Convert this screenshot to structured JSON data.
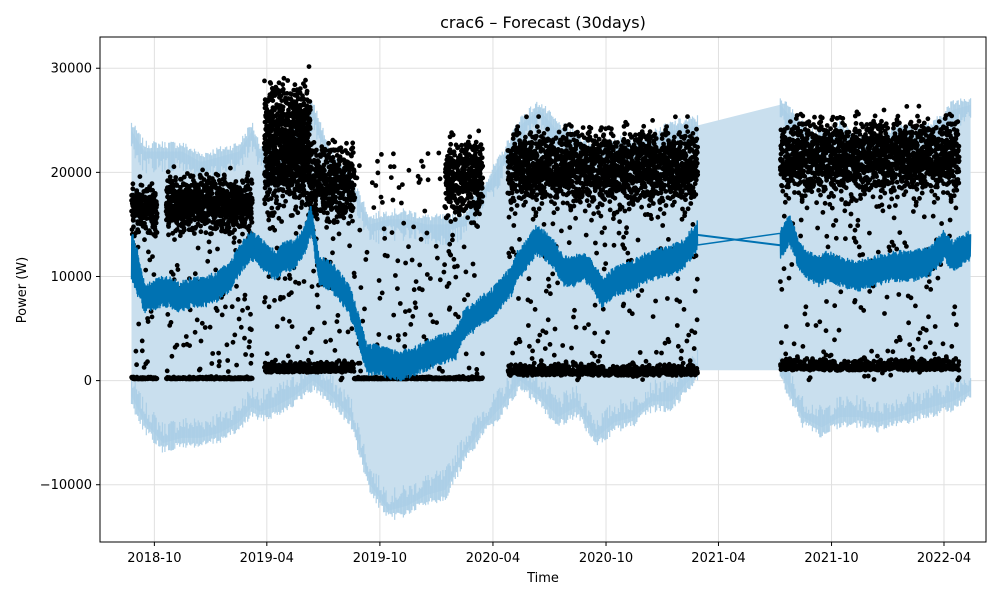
{
  "chart_data": {
    "type": "line",
    "title": "crac6 – Forecast (30days)",
    "xlabel": "Time",
    "ylabel": "Power (W)",
    "grid": true,
    "legend": "none",
    "xlim": [
      "2018-07-05",
      "2022-06-08"
    ],
    "ylim": [
      -15500,
      33000
    ],
    "x_ticks": [
      "2018-10",
      "2019-04",
      "2019-10",
      "2020-04",
      "2020-10",
      "2021-04",
      "2021-10",
      "2022-04"
    ],
    "y_ticks": [
      -10000,
      0,
      10000,
      20000,
      30000
    ],
    "colors": {
      "forecast_line": "#0072B2",
      "uncertainty_band": "#c9dfee",
      "uncertainty_fringe": "#a9cde6",
      "observations": "#000000",
      "grid": "#e0e0e0"
    },
    "series": [
      {
        "style": "line",
        "x": [
          "2018-08-25",
          "2018-09-01",
          "2018-09-15",
          "2018-09-25",
          "2018-10-10",
          "2018-10-25",
          "2018-11-10",
          "2018-12-01",
          "2018-12-20",
          "2019-01-10",
          "2019-02-01",
          "2019-02-20",
          "2019-03-08",
          "2019-04-15",
          "2019-05-01",
          "2019-05-15",
          "2019-06-01",
          "2019-06-12",
          "2019-06-25",
          "2019-07-15",
          "2019-08-10",
          "2019-08-20",
          "2019-09-01",
          "2019-09-10",
          "2019-10-01",
          "2019-10-20",
          "2019-11-10",
          "2019-12-01",
          "2019-12-20",
          "2020-01-10",
          "2020-02-01",
          "2020-02-15",
          "2020-03-01",
          "2020-03-15",
          "2020-04-01",
          "2020-04-15",
          "2020-05-01",
          "2020-05-10",
          "2020-05-25",
          "2020-06-10",
          "2020-06-25",
          "2020-07-10",
          "2020-07-25",
          "2020-08-10",
          "2020-08-25",
          "2020-09-05",
          "2020-09-25",
          "2020-10-15",
          "2020-11-10",
          "2020-12-10",
          "2021-01-10",
          "2021-02-01",
          "2021-02-15",
          "2021-02-26",
          "2021-07-10",
          "2021-07-25",
          "2021-08-10",
          "2021-08-25",
          "2021-09-10",
          "2021-09-25",
          "2021-10-15",
          "2021-11-10",
          "2021-12-10",
          "2022-01-10",
          "2022-02-10",
          "2022-03-10",
          "2022-04-01",
          "2022-04-15",
          "2022-05-01",
          "2022-05-14"
        ],
        "y": [
          12000,
          11000,
          8000,
          8000,
          8500,
          8500,
          8000,
          8500,
          8500,
          9000,
          10000,
          12000,
          13000,
          11000,
          12000,
          12000,
          13500,
          15500,
          10500,
          10000,
          8000,
          6500,
          4000,
          2000,
          2000,
          1500,
          1500,
          2000,
          2500,
          3000,
          3500,
          5500,
          6000,
          6800,
          7500,
          8500,
          9500,
          11000,
          12000,
          13500,
          13000,
          12000,
          10500,
          10500,
          11000,
          10500,
          8500,
          9500,
          10000,
          11000,
          11500,
          12000,
          13000,
          14000,
          13000,
          14500,
          12000,
          11000,
          10500,
          11000,
          10500,
          10000,
          10500,
          11000,
          11000,
          11500,
          13000,
          12000,
          12500,
          13000
        ],
        "amplitude": [
          2500,
          2500,
          1500,
          1500,
          1500,
          1500,
          1500,
          1500,
          1500,
          1500,
          1500,
          1500,
          1500,
          1500,
          1500,
          1500,
          1500,
          1500,
          1500,
          1500,
          1500,
          1500,
          1500,
          1500,
          1500,
          1500,
          1500,
          1500,
          1500,
          1500,
          1500,
          1500,
          1500,
          1500,
          1500,
          1500,
          1500,
          1500,
          1500,
          1500,
          1500,
          1500,
          1500,
          1500,
          1500,
          1500,
          1500,
          1500,
          1500,
          1500,
          1500,
          1500,
          1500,
          1500,
          1500,
          1500,
          1500,
          1500,
          1500,
          1500,
          1500,
          1500,
          1500,
          1500,
          1500,
          1500,
          1500,
          1500,
          1500,
          1500
        ]
      },
      {
        "style": "band",
        "x": [
          "2018-08-25",
          "2018-09-15",
          "2018-10-15",
          "2018-11-15",
          "2018-12-15",
          "2019-01-15",
          "2019-02-15",
          "2019-03-08",
          "2019-03-20",
          "2019-04-15",
          "2019-05-15",
          "2019-06-15",
          "2019-07-15",
          "2019-08-15",
          "2019-09-15",
          "2019-10-15",
          "2019-11-15",
          "2019-12-15",
          "2020-01-15",
          "2020-02-15",
          "2020-03-15",
          "2020-04-15",
          "2020-05-15",
          "2020-06-15",
          "2020-07-15",
          "2020-08-15",
          "2020-09-15",
          "2020-10-15",
          "2020-11-15",
          "2020-12-15",
          "2021-01-15",
          "2021-02-26",
          "2021-07-10",
          "2021-08-15",
          "2021-09-15",
          "2021-10-15",
          "2021-11-15",
          "2021-12-15",
          "2022-01-15",
          "2022-02-15",
          "2022-03-15",
          "2022-04-15",
          "2022-05-14"
        ],
        "upper": [
          24000,
          22000,
          22000,
          22000,
          21000,
          21500,
          22000,
          24000,
          22000,
          21000,
          24000,
          26000,
          21000,
          19000,
          15000,
          15500,
          15500,
          15000,
          15000,
          15500,
          18000,
          21000,
          24500,
          26000,
          24000,
          23000,
          21500,
          22500,
          22500,
          23000,
          24000,
          24500,
          26500,
          24000,
          23000,
          24000,
          22500,
          22500,
          24000,
          23500,
          24000,
          26000,
          26500
        ],
        "lower": [
          -1500,
          -4000,
          -6000,
          -5500,
          -5500,
          -5000,
          -4000,
          -2500,
          -3000,
          -2500,
          -1500,
          0,
          -1500,
          -3500,
          -10000,
          -12500,
          -12000,
          -11000,
          -10500,
          -7000,
          -4500,
          -2500,
          0,
          -1500,
          -3500,
          -2500,
          -5500,
          -4000,
          -3500,
          -2000,
          -2000,
          1000,
          1000,
          -3500,
          -4500,
          -3500,
          -3500,
          -4000,
          -3500,
          -3000,
          -2500,
          -2000,
          -1000
        ],
        "fringe": 1500
      },
      {
        "style": "scatter",
        "segments": [
          {
            "from": "2018-08-25",
            "to": "2018-10-05",
            "cluster_y": [
              16500
            ],
            "spread": 1500,
            "base_y": 150
          },
          {
            "from": "2018-10-20",
            "to": "2019-03-08",
            "cluster_y": [
              17000
            ],
            "spread": 1800,
            "base_y": 150
          },
          {
            "from": "2019-03-28",
            "to": "2019-06-10",
            "cluster_y": [
              20500,
              24500
            ],
            "spread": 2800,
            "base_y": 800
          },
          {
            "from": "2019-06-10",
            "to": "2019-08-20",
            "cluster_y": [
              19000
            ],
            "spread": 2500,
            "base_y": 800
          },
          {
            "from": "2019-08-20",
            "to": "2020-01-15",
            "cluster_y": [],
            "spread": 0,
            "base_y": 150
          },
          {
            "from": "2020-01-15",
            "to": "2020-03-15",
            "cluster_y": [
              19500
            ],
            "spread": 2500,
            "base_y": 150
          },
          {
            "from": "2020-04-25",
            "to": "2021-02-26",
            "cluster_y": [
              20500
            ],
            "spread": 2500,
            "base_y": 500
          },
          {
            "from": "2021-07-10",
            "to": "2022-04-25",
            "cluster_y": [
              21500
            ],
            "spread": 2500,
            "base_y": 1000
          }
        ],
        "outlier_range": [
          0,
          31000
        ]
      }
    ]
  }
}
